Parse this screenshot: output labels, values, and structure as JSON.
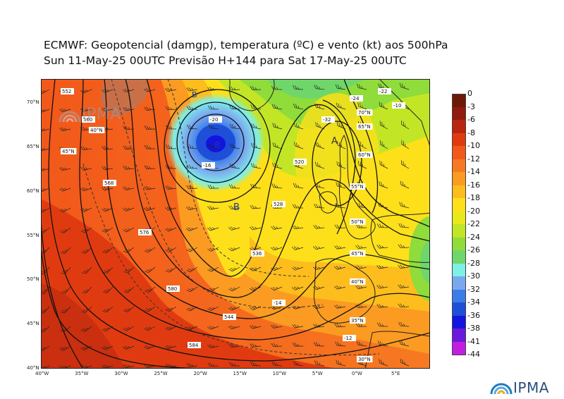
{
  "title_line1": "ECMWF:  Geopotencial (damgp), temperatura (ºC) e vento (kt) aos 500hPa",
  "title_line2": "Sun 11-May-25 00UTC Previsão H+144 para Sat 17-May-25 00UTC",
  "logo_text": "IPMA",
  "x_axis_labels": [
    "40°W",
    "35°W",
    "30°W",
    "25°W",
    "20°W",
    "15°W",
    "10°W",
    "5°W",
    "0°W",
    "5°E"
  ],
  "y_axis_labels": [
    "70°N",
    "65°N",
    "60°N",
    "55°N",
    "50°N",
    "45°N",
    "40°N"
  ],
  "colorbar": {
    "labels": [
      "0",
      "-3",
      "-6",
      "-8",
      "-10",
      "-12",
      "-14",
      "-16",
      "-18",
      "-20",
      "-22",
      "-24",
      "-26",
      "-28",
      "-30",
      "-32",
      "-34",
      "-36",
      "-38",
      "-41",
      "-44"
    ],
    "colors": [
      "#6b1a0a",
      "#8f1c0e",
      "#b8260f",
      "#e03b10",
      "#f2581a",
      "#f77a22",
      "#fb9b22",
      "#fdbd1d",
      "#fde01a",
      "#e8e81c",
      "#c2e626",
      "#8fdc3a",
      "#6fd66a",
      "#7ff0e6",
      "#7aa8ef",
      "#3b7de6",
      "#1f4fd8",
      "#1414e0",
      "#6a1ad8",
      "#c21ee0"
    ]
  },
  "map_annotations": {
    "high_center": "A",
    "low_centers": [
      "B",
      "B",
      "B"
    ],
    "contour_labels": [
      "552",
      "560",
      "568",
      "576",
      "580",
      "584",
      "544",
      "536",
      "528",
      "520",
      "-32",
      "-24",
      "-22",
      "-20",
      "-16",
      "-14",
      "-12",
      "-10"
    ],
    "grid_labels": [
      "55°N",
      "50°N",
      "45°N",
      "40°N",
      "35°N",
      "70°N",
      "65°N",
      "60°N",
      "30°N",
      "40°N",
      "45°N"
    ]
  }
}
